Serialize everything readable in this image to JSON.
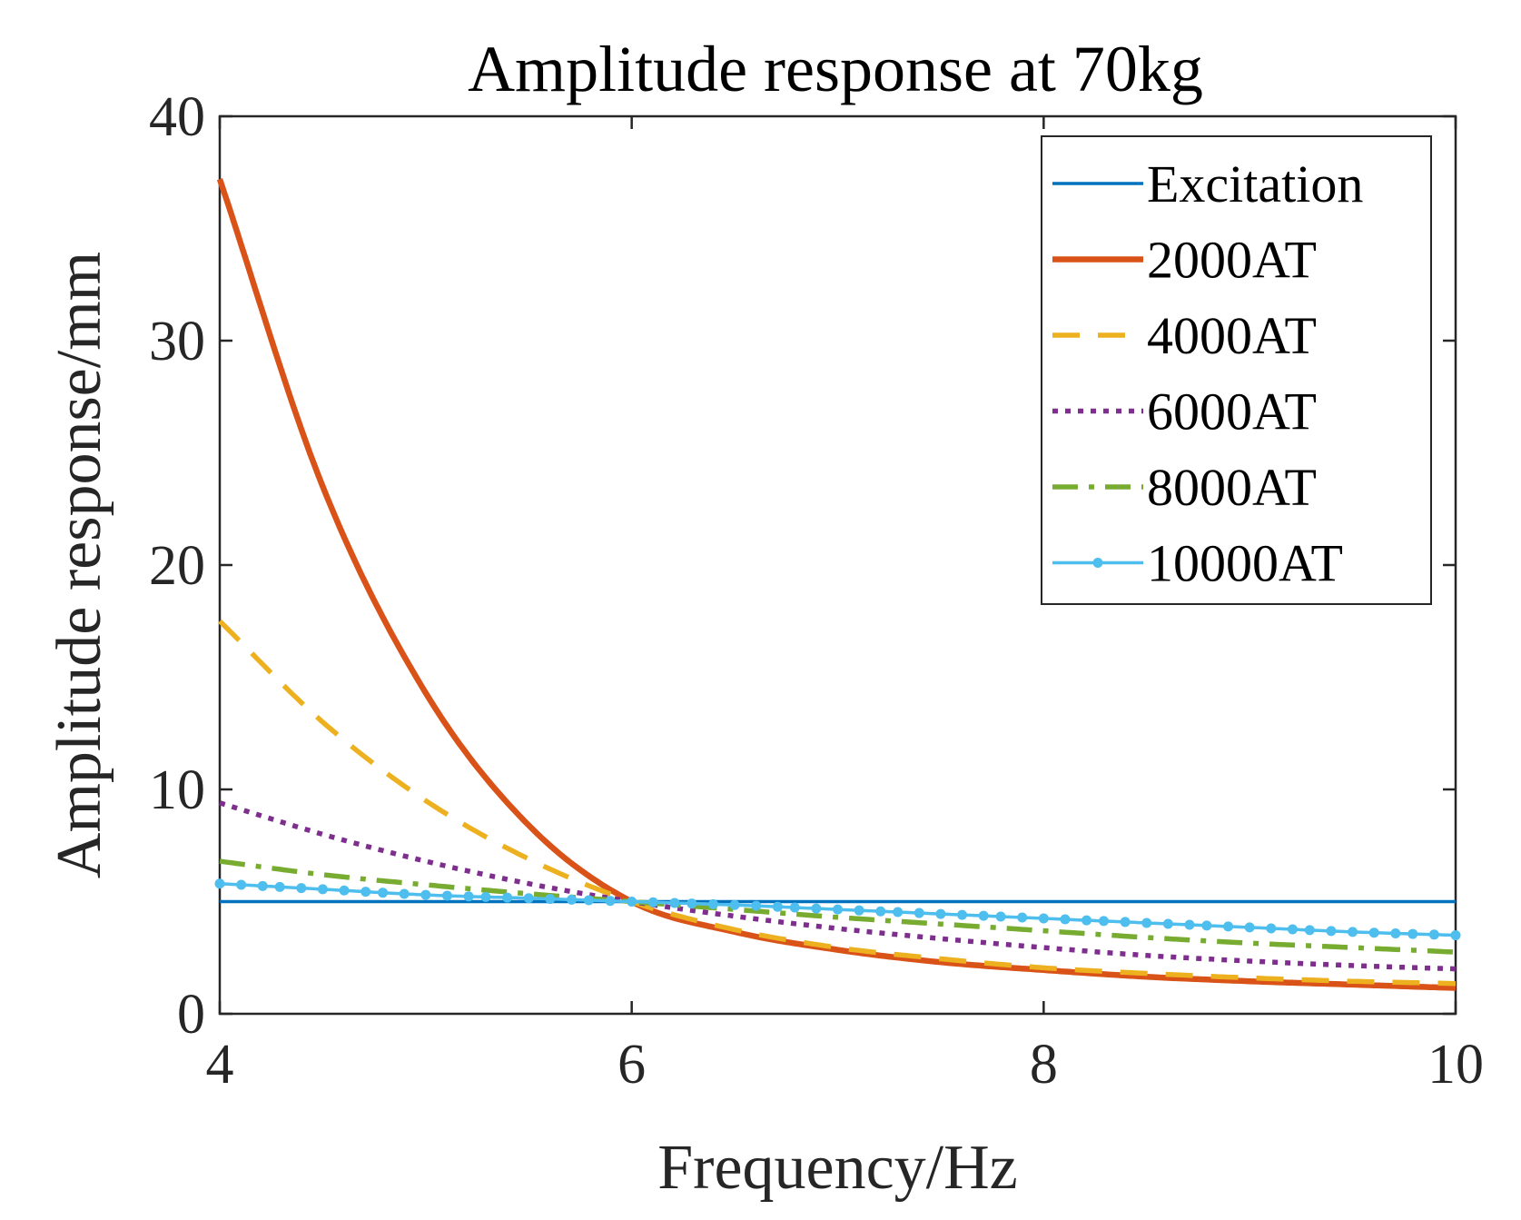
{
  "chart_data": {
    "type": "line",
    "title": "Amplitude response at 70kg",
    "xlabel": "Frequency/Hz",
    "ylabel": "Amplitude response/mm",
    "xlim": [
      4,
      10
    ],
    "ylim": [
      0,
      40
    ],
    "xticks": [
      4,
      6,
      8,
      10
    ],
    "xtick_labels": [
      "4",
      "6",
      "8",
      "10"
    ],
    "yticks": [
      0,
      10,
      20,
      30,
      40
    ],
    "ytick_labels": [
      "0",
      "10",
      "20",
      "30",
      "40"
    ],
    "grid": false,
    "legend_position": "top-right",
    "x": [
      4,
      4.5,
      5,
      5.5,
      6,
      6.5,
      7,
      7.5,
      8,
      8.5,
      9,
      9.5,
      10
    ],
    "series": [
      {
        "name": "Excitation",
        "color": "#0072BD",
        "style": "solid",
        "values": [
          5,
          5,
          5,
          5,
          5,
          5,
          5,
          5,
          5,
          5,
          5,
          5,
          5
        ]
      },
      {
        "name": "2000AT",
        "color": "#D95319",
        "style": "solid-thick",
        "values": [
          37.2,
          23.5,
          14.3,
          8.4,
          5.0,
          3.65,
          2.85,
          2.3,
          1.95,
          1.65,
          1.45,
          1.3,
          1.15
        ]
      },
      {
        "name": "4000AT",
        "color": "#EDB120",
        "style": "dashed",
        "values": [
          17.5,
          13.0,
          9.5,
          6.9,
          5.0,
          3.75,
          2.95,
          2.45,
          2.05,
          1.8,
          1.6,
          1.45,
          1.35
        ]
      },
      {
        "name": "6000AT",
        "color": "#7E2F8E",
        "style": "dotted",
        "values": [
          9.4,
          8.0,
          6.8,
          5.8,
          5.0,
          4.35,
          3.8,
          3.35,
          2.95,
          2.6,
          2.35,
          2.15,
          2.0
        ]
      },
      {
        "name": "8000AT",
        "color": "#77AC30",
        "style": "dashdot",
        "values": [
          6.8,
          6.2,
          5.75,
          5.35,
          5.0,
          4.65,
          4.3,
          4.0,
          3.7,
          3.4,
          3.15,
          2.95,
          2.75
        ]
      },
      {
        "name": "10000AT",
        "color": "#4DBEEE",
        "style": "solid-markers",
        "values": [
          5.8,
          5.55,
          5.3,
          5.15,
          5.0,
          4.85,
          4.65,
          4.45,
          4.25,
          4.05,
          3.85,
          3.65,
          3.5
        ]
      }
    ]
  }
}
